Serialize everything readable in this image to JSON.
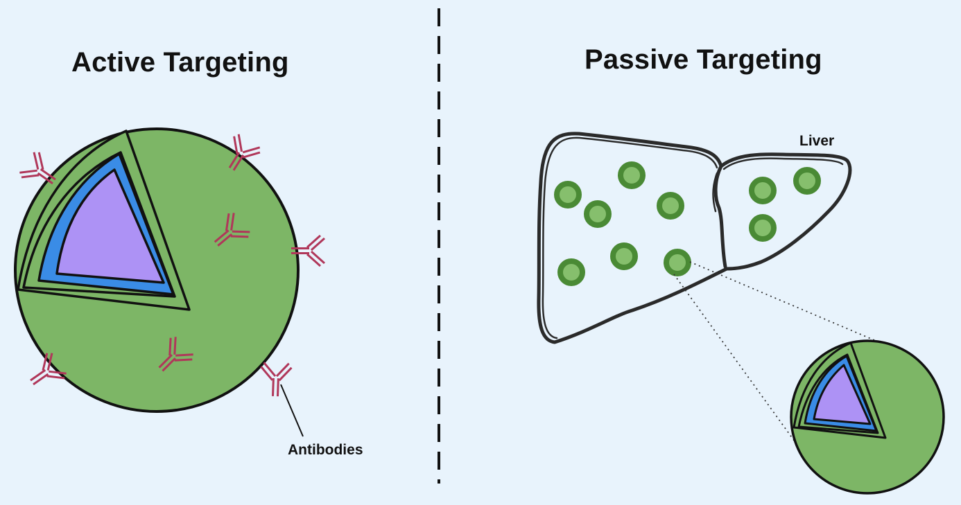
{
  "left_panel": {
    "title": "Active Targeting",
    "annotation": "Antibodies"
  },
  "right_panel": {
    "title": "Passive Targeting",
    "organ_label": "Liver"
  },
  "colors": {
    "background": "#e8f3fc",
    "shell": "#7db666",
    "blue_layer": "#3a8ce6",
    "core": "#ad92f5",
    "antibody": "#b0375a",
    "dot_outer": "#4a8a35",
    "dot_inner": "#86bf6d",
    "outline": "#111111"
  }
}
